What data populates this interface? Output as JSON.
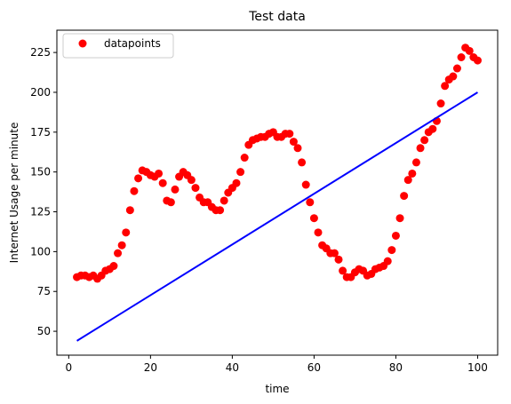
{
  "chart_data": {
    "type": "scatter",
    "title": "Test data",
    "xlabel": "time",
    "ylabel": "Internet Usage per minute",
    "xlim": [
      -2.9,
      104.9
    ],
    "ylim": [
      35,
      239
    ],
    "xticks": [
      0,
      20,
      40,
      60,
      80,
      100
    ],
    "yticks": [
      50,
      75,
      100,
      125,
      150,
      175,
      200,
      225
    ],
    "grid": false,
    "legend": {
      "placement": "top-left",
      "entries": [
        "datapoints"
      ]
    },
    "colors": {
      "points": "#ff0000",
      "line": "#0000ff"
    },
    "series": [
      {
        "name": "datapoints",
        "kind": "scatter",
        "x": [
          2,
          3,
          4,
          5,
          6,
          7,
          8,
          9,
          10,
          11,
          12,
          13,
          14,
          15,
          16,
          17,
          18,
          19,
          20,
          21,
          22,
          23,
          24,
          25,
          26,
          27,
          28,
          29,
          30,
          31,
          32,
          33,
          34,
          35,
          36,
          37,
          38,
          39,
          40,
          41,
          42,
          43,
          44,
          45,
          46,
          47,
          48,
          49,
          50,
          51,
          52,
          53,
          54,
          55,
          56,
          57,
          58,
          59,
          60,
          61,
          62,
          63,
          64,
          65,
          66,
          67,
          68,
          69,
          70,
          71,
          72,
          73,
          74,
          75,
          76,
          77,
          78,
          79,
          80,
          81,
          82,
          83,
          84,
          85,
          86,
          87,
          88,
          89,
          90,
          91,
          92,
          93,
          94,
          95,
          96,
          97,
          98,
          99,
          100
        ],
        "y": [
          84,
          85,
          85,
          84,
          85,
          83,
          85,
          88,
          89,
          91,
          99,
          104,
          112,
          126,
          138,
          146,
          151,
          150,
          148,
          147,
          149,
          143,
          132,
          131,
          139,
          147,
          150,
          148,
          145,
          140,
          134,
          131,
          131,
          128,
          126,
          126,
          132,
          137,
          140,
          143,
          150,
          159,
          167,
          170,
          171,
          172,
          172,
          174,
          175,
          172,
          172,
          174,
          174,
          169,
          165,
          156,
          142,
          131,
          121,
          112,
          104,
          102,
          99,
          99,
          95,
          88,
          84,
          84,
          87,
          89,
          88,
          85,
          86,
          89,
          90,
          91,
          94,
          101,
          110,
          121,
          135,
          145,
          149,
          156,
          165,
          170,
          175,
          177,
          182,
          193,
          204,
          208,
          210,
          215,
          222,
          228,
          226,
          222,
          220
        ]
      },
      {
        "name": "",
        "kind": "line",
        "x": [
          2,
          100
        ],
        "y": [
          44,
          200
        ]
      }
    ]
  }
}
